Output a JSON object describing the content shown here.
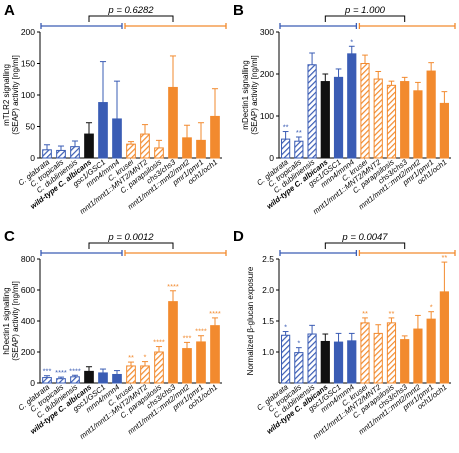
{
  "colors": {
    "blue": "#3a5cb4",
    "orange": "#f28a2e",
    "black": "#111111",
    "hatch_blue": "#3a5cb4",
    "hatch_orange": "#f28a2e"
  },
  "categories": [
    "C. glabrata",
    "C. tropicalis",
    "C. dubliniensis",
    "wild-type C. albicans",
    "gsc1/GSC1",
    "mnn4/mnn4",
    "C. krusei",
    "mnt1/mnt1::MNT2/MNT2",
    "C. parapsilosis",
    "chs3/chs3",
    "mnt1/mnt1::mnt2/mnt2",
    "pmr1/pmr1",
    "och1/och1"
  ],
  "bold_category_index": 3,
  "bar_style": [
    {
      "fill": "hatch-blue"
    },
    {
      "fill": "hatch-blue"
    },
    {
      "fill": "hatch-blue"
    },
    {
      "fill": "black"
    },
    {
      "fill": "blue"
    },
    {
      "fill": "blue"
    },
    {
      "fill": "hatch-orange"
    },
    {
      "fill": "hatch-orange"
    },
    {
      "fill": "hatch-orange"
    },
    {
      "fill": "orange"
    },
    {
      "fill": "orange"
    },
    {
      "fill": "orange"
    },
    {
      "fill": "orange"
    }
  ],
  "chart_data": [
    {
      "type": "bar",
      "panel_label": "A",
      "ylabel": "mTLR2 signalling (SEAP) activity [ng/ml]",
      "ylim": [
        0,
        200
      ],
      "yticks": [
        0,
        50,
        100,
        150,
        200
      ],
      "p_value": "p = 0.6282",
      "values": [
        13,
        12,
        18,
        38,
        88,
        62,
        22,
        38,
        16,
        112,
        32,
        28,
        66
      ],
      "errors": [
        8,
        7,
        9,
        18,
        65,
        60,
        4,
        15,
        12,
        50,
        20,
        28,
        44
      ],
      "significance": [
        "",
        "",
        "",
        "",
        "",
        "",
        "",
        "",
        "",
        "",
        "",
        "",
        ""
      ]
    },
    {
      "type": "bar",
      "panel_label": "B",
      "ylabel": "mDectin1 signalling (SEAP) activity [ng/ml]",
      "ylim": [
        0,
        300
      ],
      "yticks": [
        0,
        100,
        200,
        300
      ],
      "p_value": "p = 1.000",
      "values": [
        45,
        40,
        222,
        182,
        192,
        248,
        225,
        188,
        173,
        182,
        160,
        207,
        130
      ],
      "errors": [
        18,
        10,
        28,
        18,
        20,
        18,
        20,
        18,
        10,
        10,
        20,
        20,
        28
      ],
      "significance": [
        "**",
        "**",
        "",
        "",
        "",
        "*",
        "",
        "",
        "",
        "",
        "",
        "",
        ""
      ]
    },
    {
      "type": "bar",
      "panel_label": "C",
      "ylabel": "hDectin1 signalling (SEAP) activity [ng/ml]",
      "ylim": [
        0,
        800
      ],
      "yticks": [
        0,
        200,
        400,
        600,
        800
      ],
      "p_value": "p = 0.0012",
      "values": [
        35,
        28,
        40,
        75,
        65,
        55,
        110,
        110,
        200,
        525,
        222,
        265,
        370
      ],
      "errors": [
        12,
        10,
        10,
        30,
        25,
        25,
        25,
        28,
        35,
        70,
        40,
        40,
        50
      ],
      "significance": [
        "***",
        "****",
        "****",
        "",
        "",
        "",
        "**",
        "*",
        "****",
        "****",
        "***",
        "****",
        "****"
      ]
    },
    {
      "type": "bar",
      "panel_label": "D",
      "ylabel": "Normalized β-glucan exposure",
      "ylim": [
        0.5,
        2.5
      ],
      "yticks": [
        1.0,
        1.5,
        2.0,
        2.5
      ],
      "p_value": "p = 0.0047",
      "values": [
        1.27,
        0.99,
        1.29,
        1.17,
        1.16,
        1.18,
        1.47,
        1.3,
        1.47,
        1.2,
        1.37,
        1.53,
        1.97
      ],
      "errors": [
        0.06,
        0.08,
        0.14,
        0.12,
        0.14,
        0.12,
        0.08,
        0.14,
        0.08,
        0.06,
        0.22,
        0.12,
        0.48
      ],
      "significance": [
        "*",
        "*",
        "",
        "",
        "",
        "",
        "**",
        "",
        "**",
        "",
        "",
        "*",
        "**"
      ]
    }
  ]
}
